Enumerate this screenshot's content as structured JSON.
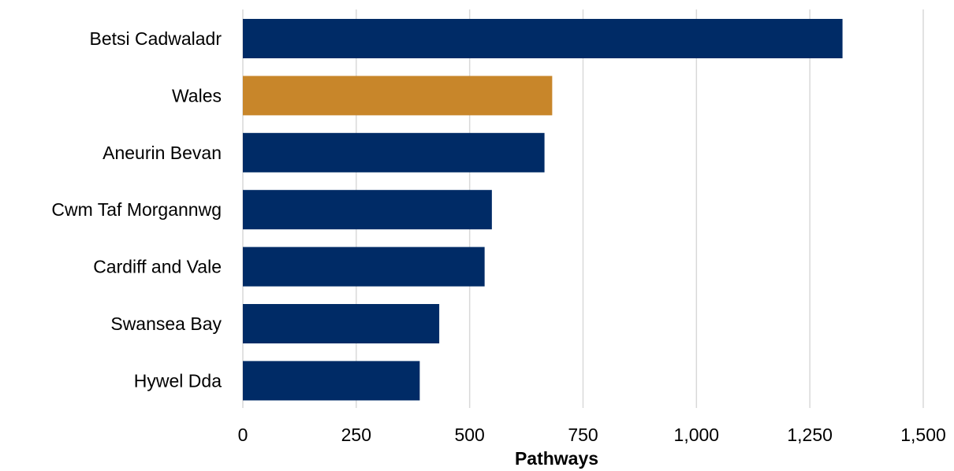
{
  "chart_data": {
    "type": "bar",
    "orientation": "horizontal",
    "categories": [
      "Betsi Cadwaladr",
      "Wales",
      "Aneurin Bevan",
      "Cwm Taf Morgannwg",
      "Cardiff and Vale",
      "Swansea Bay",
      "Hywel Dda"
    ],
    "values": [
      1322,
      682,
      665,
      549,
      533,
      433,
      390
    ],
    "highlight_category": "Wales",
    "colors": {
      "default": "#002b66",
      "highlight": "#c8862a",
      "grid": "#d9d9d9"
    },
    "title": "",
    "xlabel": "Pathways",
    "ylabel": "",
    "xlim": [
      0,
      1500
    ],
    "x_ticks": [
      0,
      250,
      500,
      750,
      1000,
      1250,
      1500
    ],
    "x_tick_labels": [
      "0",
      "250",
      "500",
      "750",
      "1,000",
      "1,250",
      "1,500"
    ],
    "grid": "vertical",
    "legend": "none"
  }
}
